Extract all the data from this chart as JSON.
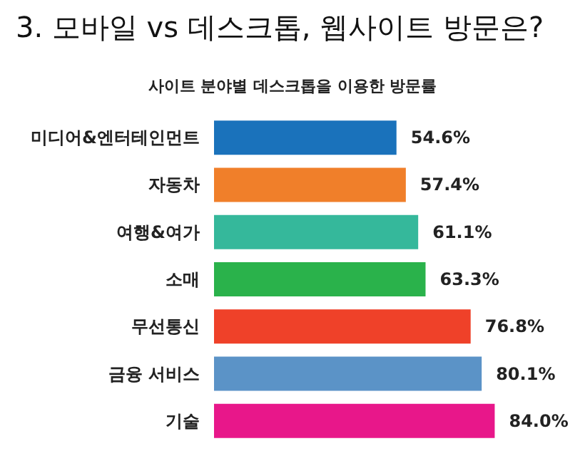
{
  "chart_data": {
    "type": "bar",
    "orientation": "horizontal",
    "title": "3. 모바일 vs 데스크톱, 웹사이트 방문은?",
    "subtitle": "사이트 분야별 데스크톱을 이용한 방문률",
    "categories": [
      "미디어&엔터테인먼트",
      "자동차",
      "여행&여가",
      "소매",
      "무선통신",
      "금융 서비스",
      "기술"
    ],
    "values": [
      54.6,
      57.4,
      61.1,
      63.3,
      76.8,
      80.1,
      84.0
    ],
    "colors": [
      "#1a72bb",
      "#f07f2a",
      "#35b89b",
      "#2ab24b",
      "#ef4129",
      "#5b93c7",
      "#e8178a"
    ],
    "value_labels": [
      "54.6%",
      "57.4%",
      "61.1%",
      "63.3%",
      "76.8%",
      "80.1%",
      "84.0%"
    ]
  }
}
